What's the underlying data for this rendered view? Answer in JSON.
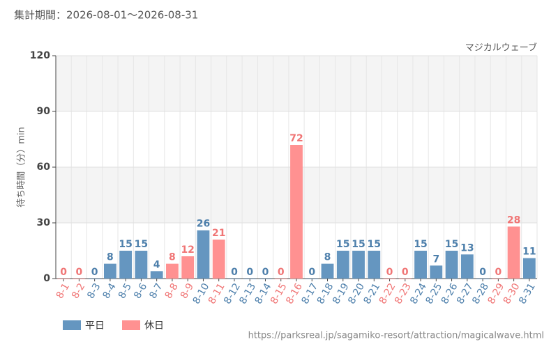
{
  "chart_data": {
    "type": "bar",
    "title": "集計期間：2026-08-01～2026-08-31",
    "subtitle": "マジカルウェーブ",
    "y_label": "待ち時間（分）min",
    "source": "https://parksreal.jp/sagamiko-resort/attraction/magicalwave.html",
    "categories": [
      "8-1",
      "8-2",
      "8-3",
      "8-4",
      "8-5",
      "8-6",
      "8-7",
      "8-8",
      "8-9",
      "8-10",
      "8-11",
      "8-12",
      "8-13",
      "8-14",
      "8-15",
      "8-16",
      "8-17",
      "8-18",
      "8-19",
      "8-20",
      "8-21",
      "8-22",
      "8-23",
      "8-24",
      "8-25",
      "8-26",
      "8-27",
      "8-28",
      "8-29",
      "8-30",
      "8-31"
    ],
    "series": [
      {
        "name": "平日",
        "color": "#6596c0",
        "label_color": "#4d7fab",
        "values": [
          null,
          null,
          0,
          8,
          15,
          15,
          4,
          null,
          null,
          26,
          null,
          0,
          0,
          0,
          null,
          null,
          0,
          8,
          15,
          15,
          15,
          null,
          null,
          15,
          7,
          15,
          13,
          0,
          null,
          null,
          11
        ]
      },
      {
        "name": "休日",
        "color": "#ff9191",
        "label_color": "#f07575",
        "values": [
          0,
          0,
          null,
          null,
          null,
          null,
          null,
          8,
          12,
          null,
          21,
          null,
          null,
          null,
          0,
          72,
          null,
          null,
          null,
          null,
          null,
          0,
          0,
          null,
          null,
          null,
          null,
          null,
          0,
          28,
          null
        ]
      }
    ],
    "ylim": [
      0,
      120
    ],
    "yticks": [
      0,
      30,
      60,
      90,
      120
    ],
    "grid": true
  }
}
